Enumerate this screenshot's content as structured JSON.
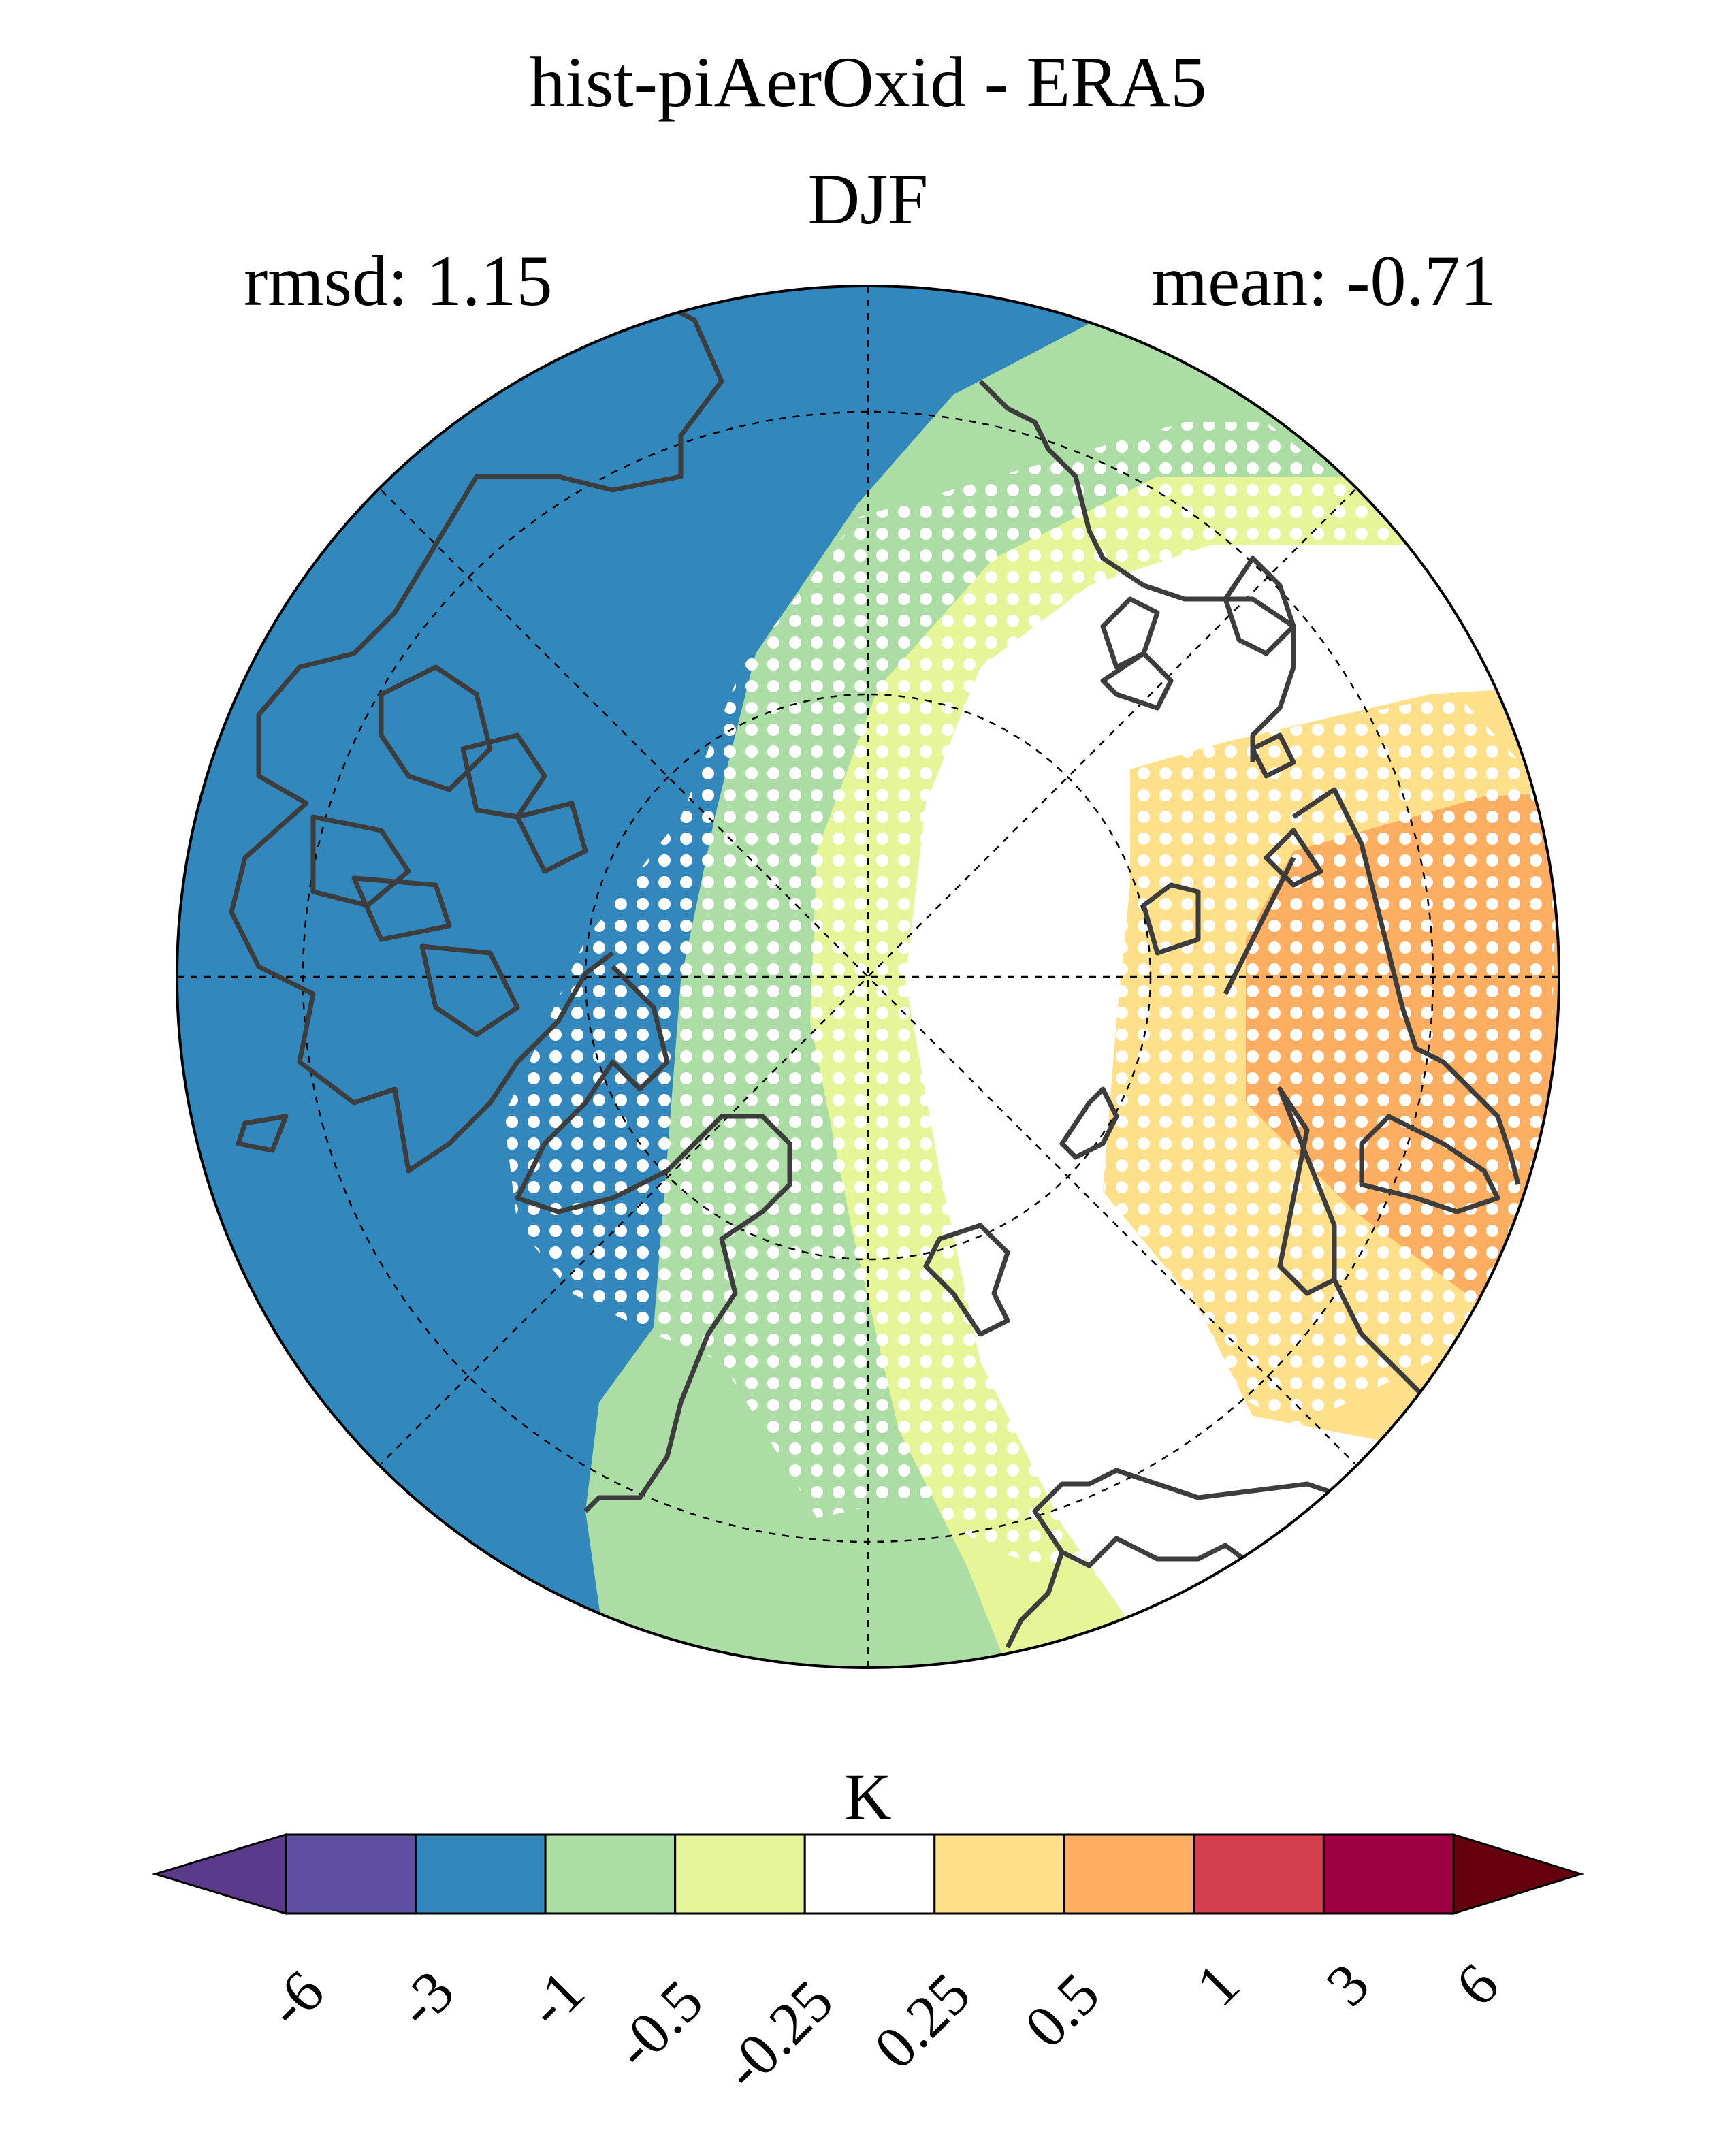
{
  "title": "hist-piAerOxid - ERA5",
  "subtitle": "DJF",
  "stats": {
    "rmsd_label": "rmsd: 1.15",
    "mean_label": "mean: -0.71"
  },
  "colorbar": {
    "unit": "K",
    "ticks": [
      "-6",
      "-3",
      "-1",
      "-0.5",
      "-0.25",
      "0.25",
      "0.5",
      "1",
      "3",
      "6"
    ],
    "colors": [
      "#5e4fa2",
      "#3288bd",
      "#abdda4",
      "#e6f598",
      "#ffffff",
      "#fee08b",
      "#fdae61",
      "#d53e4f",
      "#9e0142"
    ],
    "under_color": "#5b3a8c",
    "over_color": "#67000d"
  },
  "map": {
    "projection": "north-polar-stereographic",
    "stippling": "white dots mark significant differences",
    "colors": {
      "land_outline": "#3d3d3d",
      "blue": "#3288bd",
      "green": "#abdda4",
      "yellow_green": "#e6f598",
      "white": "#ffffff",
      "light_orange": "#fee08b",
      "orange": "#fdae61"
    }
  }
}
